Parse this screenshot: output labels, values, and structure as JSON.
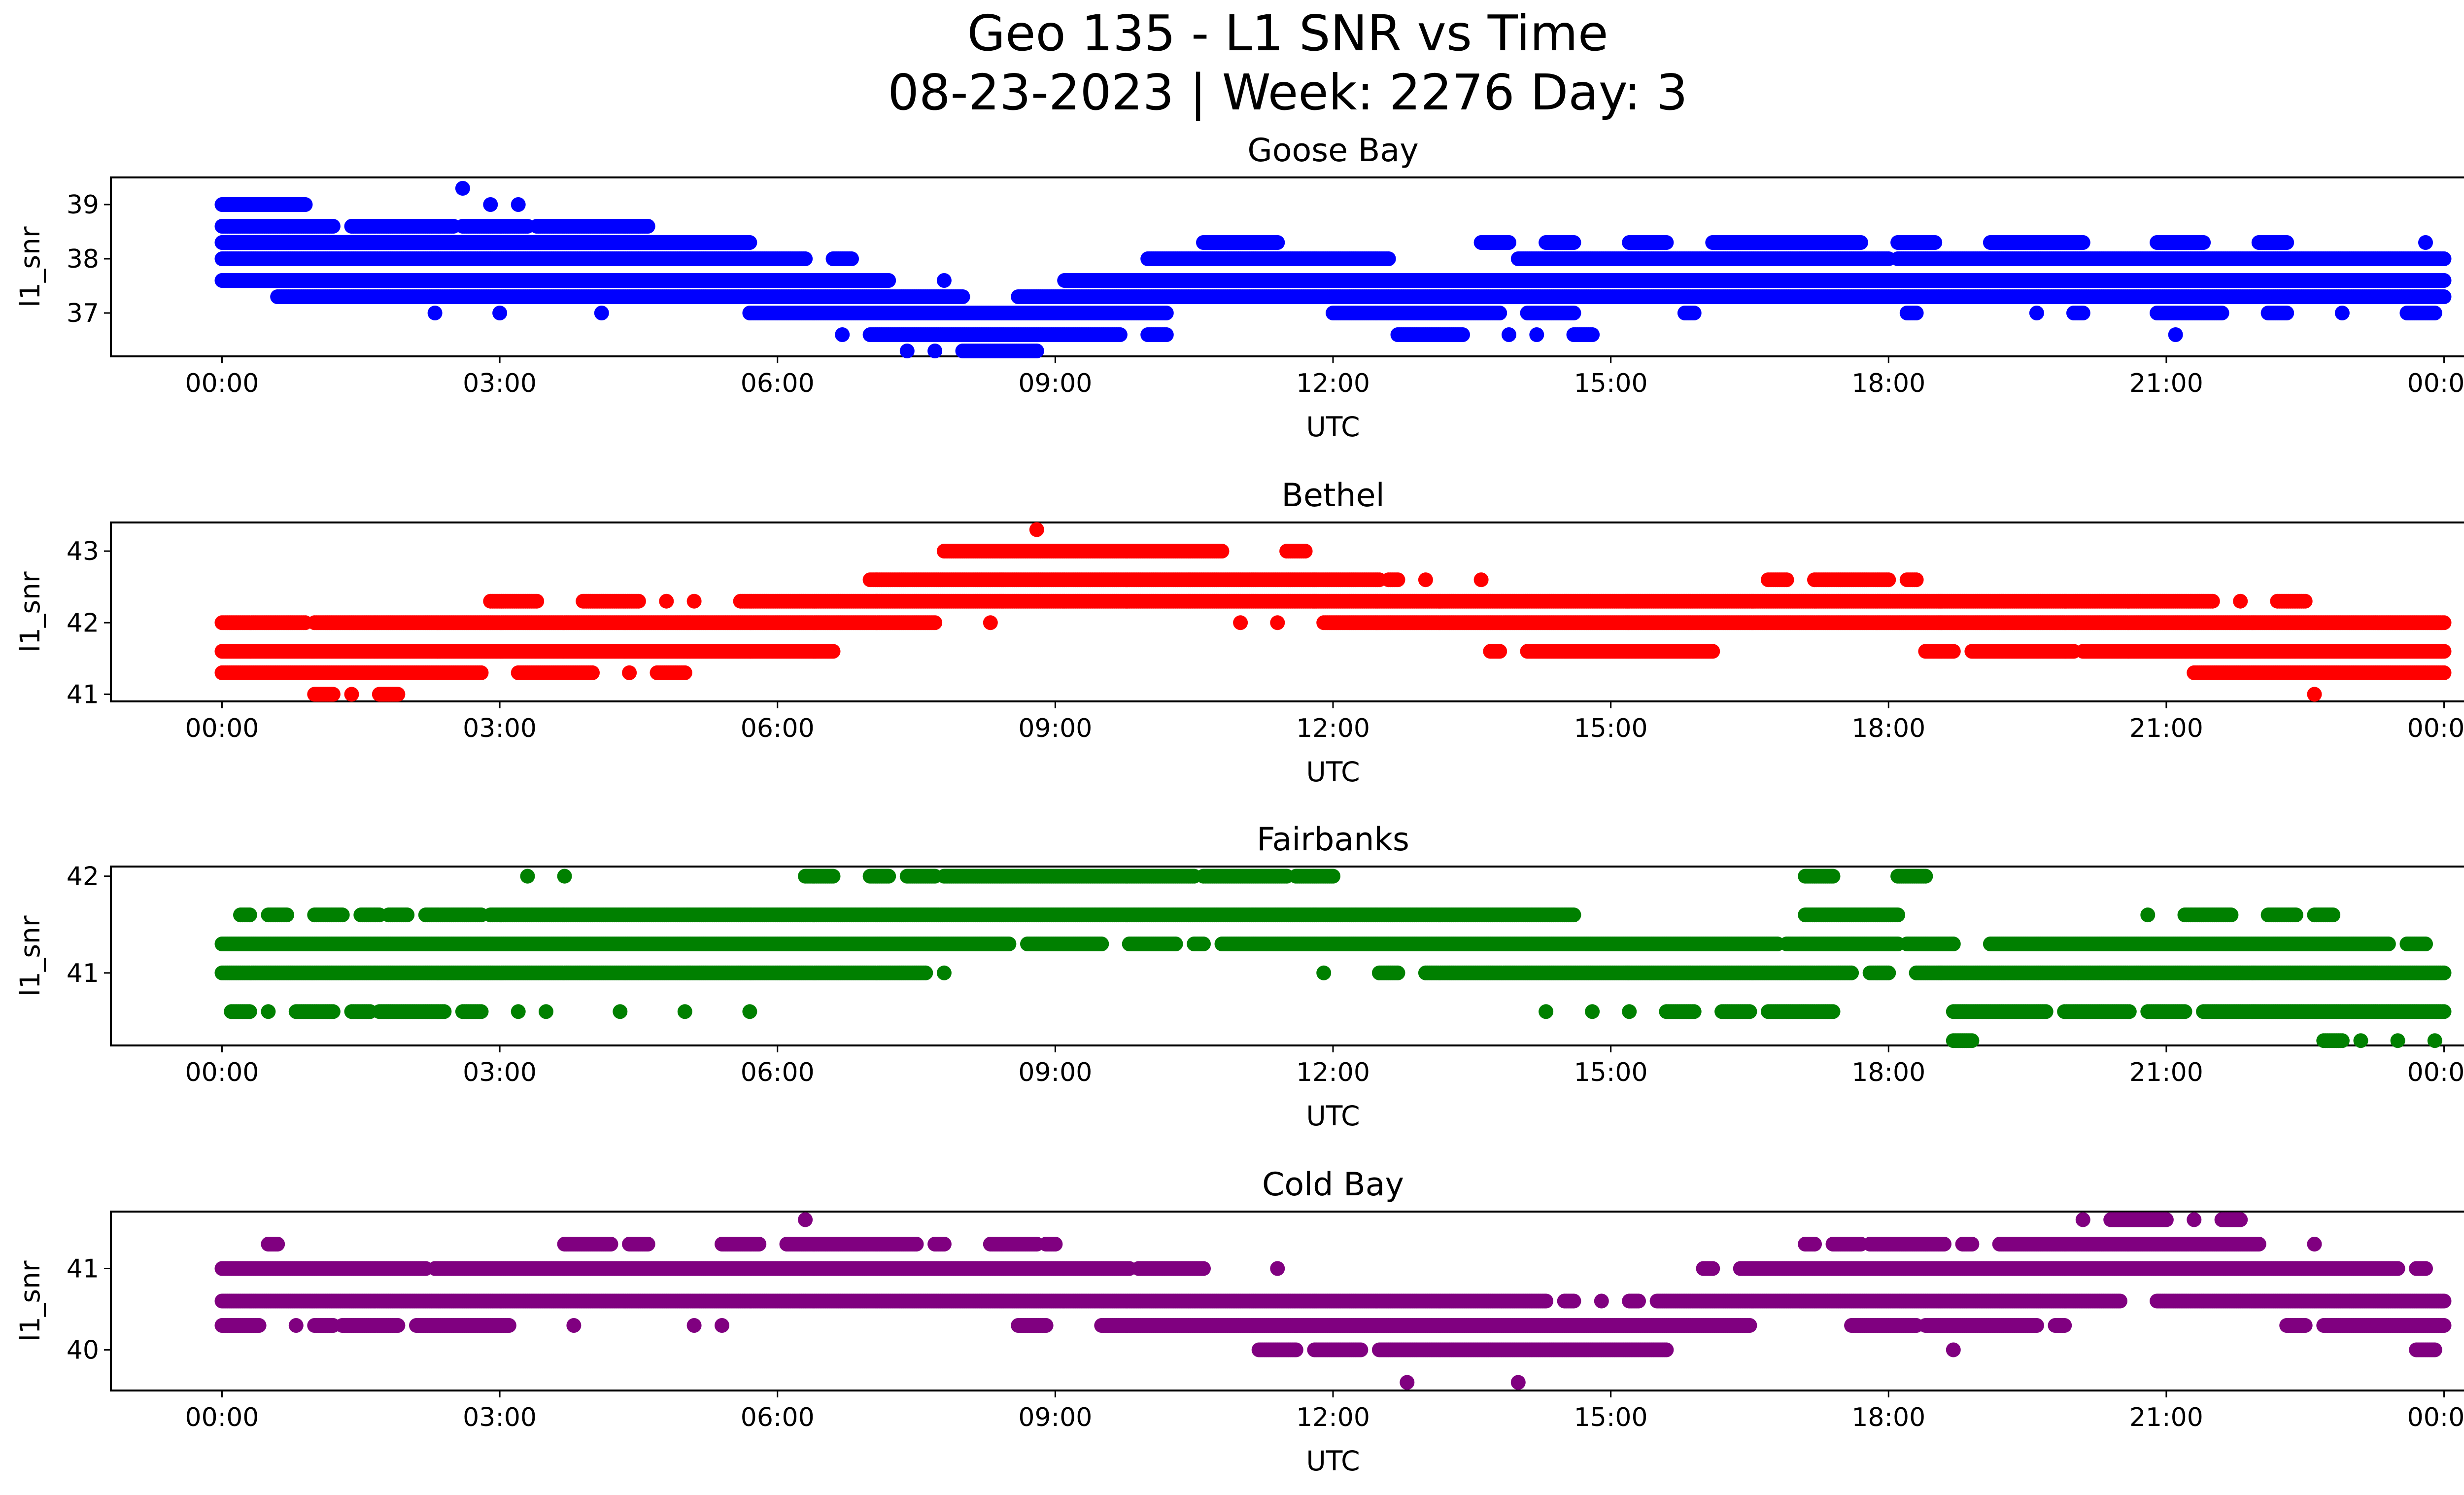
{
  "figure": {
    "title_line1": "Geo 135 - L1 SNR vs Time",
    "title_line2": "08-23-2023 | Week: 2276 Day: 3"
  },
  "chart_data": [
    {
      "type": "scatter",
      "title": "Goose Bay",
      "xlabel": "UTC",
      "ylabel": "l1_snr",
      "color": "#0000ff",
      "x_unit": "hours UTC",
      "xlim": [
        -1.2,
        25.2
      ],
      "ylim": [
        36.2,
        39.5
      ],
      "xticks": [
        "00:00",
        "03:00",
        "06:00",
        "09:00",
        "12:00",
        "15:00",
        "18:00",
        "21:00",
        "00:00"
      ],
      "yticks": [
        37,
        38,
        39
      ],
      "bands": [
        {
          "y": 39.0,
          "ranges": [
            [
              0.0,
              0.9
            ]
          ]
        },
        {
          "y": 38.6,
          "ranges": [
            [
              0.0,
              1.2
            ],
            [
              1.4,
              2.5
            ],
            [
              2.6,
              3.3
            ],
            [
              3.4,
              4.6
            ]
          ]
        },
        {
          "y": 38.3,
          "ranges": [
            [
              0.0,
              5.7
            ],
            [
              10.6,
              11.4
            ],
            [
              13.6,
              13.9
            ],
            [
              14.3,
              14.6
            ],
            [
              15.2,
              15.6
            ],
            [
              16.1,
              17.7
            ],
            [
              18.1,
              18.5
            ],
            [
              19.1,
              20.1
            ],
            [
              20.9,
              21.4
            ],
            [
              22.0,
              22.3
            ],
            [
              23.8,
              23.8
            ]
          ]
        },
        {
          "y": 38.0,
          "ranges": [
            [
              0.0,
              6.3
            ],
            [
              6.6,
              6.8
            ],
            [
              10.0,
              12.6
            ],
            [
              14.0,
              18.0
            ],
            [
              18.1,
              24.0
            ]
          ]
        },
        {
          "y": 37.6,
          "ranges": [
            [
              0.0,
              7.2
            ],
            [
              9.1,
              24.0
            ]
          ]
        },
        {
          "y": 37.3,
          "ranges": [
            [
              0.6,
              8.0
            ],
            [
              8.6,
              24.0
            ]
          ]
        },
        {
          "y": 37.0,
          "ranges": [
            [
              2.3,
              2.3
            ],
            [
              3.0,
              3.0
            ],
            [
              4.1,
              4.1
            ],
            [
              5.7,
              10.2
            ],
            [
              12.0,
              13.8
            ],
            [
              14.1,
              14.6
            ],
            [
              15.8,
              15.9
            ],
            [
              18.2,
              18.3
            ],
            [
              19.6,
              19.6
            ],
            [
              20.0,
              20.1
            ],
            [
              20.9,
              21.6
            ],
            [
              22.1,
              22.3
            ],
            [
              22.9,
              22.9
            ],
            [
              23.6,
              23.9
            ]
          ]
        },
        {
          "y": 36.6,
          "ranges": [
            [
              6.7,
              6.7
            ],
            [
              7.0,
              9.7
            ],
            [
              10.0,
              10.2
            ],
            [
              12.7,
              13.4
            ],
            [
              13.9,
              13.9
            ],
            [
              14.2,
              14.2
            ],
            [
              14.6,
              14.8
            ],
            [
              21.1,
              21.1
            ]
          ]
        },
        {
          "y": 36.3,
          "ranges": [
            [
              7.4,
              7.4
            ],
            [
              7.7,
              7.7
            ],
            [
              8.0,
              8.8
            ]
          ]
        }
      ],
      "points": [
        {
          "x": 2.6,
          "y": 39.3
        },
        {
          "x": 2.9,
          "y": 39.0
        },
        {
          "x": 3.2,
          "y": 39.0
        },
        {
          "x": 7.8,
          "y": 37.6
        }
      ]
    },
    {
      "type": "scatter",
      "title": "Bethel",
      "xlabel": "UTC",
      "ylabel": "l1_snr",
      "color": "#ff0000",
      "x_unit": "hours UTC",
      "xlim": [
        -1.2,
        25.2
      ],
      "ylim": [
        40.9,
        43.4
      ],
      "xticks": [
        "00:00",
        "03:00",
        "06:00",
        "09:00",
        "12:00",
        "15:00",
        "18:00",
        "21:00",
        "00:00"
      ],
      "yticks": [
        41,
        42,
        43
      ],
      "bands": [
        {
          "y": 43.0,
          "ranges": [
            [
              7.8,
              10.8
            ],
            [
              11.5,
              11.7
            ]
          ]
        },
        {
          "y": 42.6,
          "ranges": [
            [
              7.0,
              12.5
            ],
            [
              12.6,
              12.7
            ],
            [
              13.0,
              13.0
            ],
            [
              13.6,
              13.6
            ],
            [
              16.7,
              16.9
            ],
            [
              17.2,
              18.0
            ],
            [
              18.2,
              18.3
            ]
          ]
        },
        {
          "y": 42.3,
          "ranges": [
            [
              2.9,
              3.4
            ],
            [
              3.9,
              4.5
            ],
            [
              4.8,
              4.8
            ],
            [
              5.1,
              5.1
            ],
            [
              5.6,
              21.5
            ],
            [
              21.8,
              21.8
            ],
            [
              22.2,
              22.5
            ]
          ]
        },
        {
          "y": 42.0,
          "ranges": [
            [
              0.0,
              0.9
            ],
            [
              1.0,
              7.7
            ],
            [
              11.0,
              11.0
            ],
            [
              11.9,
              24.0
            ]
          ]
        },
        {
          "y": 41.6,
          "ranges": [
            [
              0.0,
              6.6
            ],
            [
              13.7,
              13.8
            ],
            [
              14.1,
              16.1
            ],
            [
              18.4,
              18.7
            ],
            [
              18.9,
              20.0
            ],
            [
              20.1,
              24.0
            ]
          ]
        },
        {
          "y": 41.3,
          "ranges": [
            [
              0.0,
              2.8
            ],
            [
              3.2,
              4.0
            ],
            [
              4.4,
              4.4
            ],
            [
              4.7,
              5.0
            ],
            [
              21.3,
              24.0
            ]
          ]
        },
        {
          "y": 41.0,
          "ranges": [
            [
              1.0,
              1.2
            ],
            [
              1.4,
              1.4
            ],
            [
              1.7,
              1.9
            ],
            [
              22.6,
              22.6
            ]
          ]
        }
      ],
      "points": [
        {
          "x": 8.8,
          "y": 43.3
        },
        {
          "x": 8.3,
          "y": 42.0
        },
        {
          "x": 11.4,
          "y": 42.0
        }
      ]
    },
    {
      "type": "scatter",
      "title": "Fairbanks",
      "xlabel": "UTC",
      "ylabel": "l1_snr",
      "color": "#008000",
      "x_unit": "hours UTC",
      "xlim": [
        -1.2,
        25.2
      ],
      "ylim": [
        40.25,
        42.1
      ],
      "xticks": [
        "00:00",
        "03:00",
        "06:00",
        "09:00",
        "12:00",
        "15:00",
        "18:00",
        "21:00",
        "00:00"
      ],
      "yticks": [
        41,
        42
      ],
      "bands": [
        {
          "y": 42.0,
          "ranges": [
            [
              3.3,
              3.3
            ],
            [
              3.7,
              3.7
            ],
            [
              6.3,
              6.6
            ],
            [
              7.0,
              7.2
            ],
            [
              7.4,
              7.7
            ],
            [
              7.8,
              10.5
            ],
            [
              10.6,
              11.5
            ],
            [
              11.6,
              12.0
            ],
            [
              17.1,
              17.4
            ],
            [
              18.1,
              18.4
            ]
          ]
        },
        {
          "y": 41.6,
          "ranges": [
            [
              0.2,
              0.3
            ],
            [
              0.5,
              0.7
            ],
            [
              1.0,
              1.3
            ],
            [
              1.5,
              1.7
            ],
            [
              1.8,
              2.0
            ],
            [
              2.2,
              2.8
            ],
            [
              2.9,
              14.6
            ],
            [
              17.1,
              18.1
            ],
            [
              20.8,
              20.8
            ],
            [
              21.2,
              21.7
            ],
            [
              22.1,
              22.4
            ],
            [
              22.6,
              22.8
            ]
          ]
        },
        {
          "y": 41.3,
          "ranges": [
            [
              0.0,
              8.5
            ],
            [
              8.7,
              9.5
            ],
            [
              9.8,
              10.3
            ],
            [
              10.5,
              10.6
            ],
            [
              10.8,
              16.8
            ],
            [
              16.9,
              18.1
            ],
            [
              18.2,
              18.7
            ],
            [
              19.1,
              23.4
            ],
            [
              23.6,
              23.8
            ]
          ]
        },
        {
          "y": 41.0,
          "ranges": [
            [
              0.0,
              7.6
            ],
            [
              7.8,
              7.8
            ],
            [
              11.9,
              11.9
            ],
            [
              12.5,
              12.7
            ],
            [
              13.0,
              17.6
            ],
            [
              17.8,
              18.0
            ],
            [
              18.3,
              24.0
            ]
          ]
        },
        {
          "y": 40.6,
          "ranges": [
            [
              0.1,
              0.3
            ],
            [
              0.5,
              0.5
            ],
            [
              0.8,
              1.2
            ],
            [
              1.4,
              1.6
            ],
            [
              1.7,
              2.4
            ],
            [
              2.6,
              2.8
            ],
            [
              3.2,
              3.2
            ],
            [
              3.5,
              3.5
            ],
            [
              4.3,
              4.3
            ],
            [
              5.0,
              5.0
            ],
            [
              5.7,
              5.7
            ],
            [
              14.3,
              14.3
            ],
            [
              14.8,
              14.8
            ],
            [
              15.2,
              15.2
            ],
            [
              15.6,
              15.9
            ],
            [
              16.2,
              16.5
            ],
            [
              16.7,
              17.4
            ],
            [
              18.7,
              19.7
            ],
            [
              19.9,
              20.6
            ],
            [
              20.8,
              21.2
            ],
            [
              21.4,
              24.0
            ]
          ]
        },
        {
          "y": 40.3,
          "ranges": [
            [
              18.7,
              18.9
            ],
            [
              22.7,
              22.9
            ],
            [
              23.1,
              23.1
            ],
            [
              23.5,
              23.5
            ],
            [
              23.9,
              23.9
            ]
          ]
        }
      ],
      "points": []
    },
    {
      "type": "scatter",
      "title": "Cold Bay",
      "xlabel": "UTC",
      "ylabel": "l1_snr",
      "color": "#800080",
      "x_unit": "hours UTC",
      "xlim": [
        -1.2,
        25.2
      ],
      "ylim": [
        39.5,
        41.7
      ],
      "xticks": [
        "00:00",
        "03:00",
        "06:00",
        "09:00",
        "12:00",
        "15:00",
        "18:00",
        "21:00",
        "00:00"
      ],
      "yticks": [
        40,
        41
      ],
      "bands": [
        {
          "y": 41.6,
          "ranges": [
            [
              6.3,
              6.3
            ],
            [
              20.1,
              20.1
            ],
            [
              20.4,
              21.0
            ],
            [
              21.3,
              21.3
            ],
            [
              21.6,
              21.8
            ]
          ]
        },
        {
          "y": 41.3,
          "ranges": [
            [
              0.5,
              0.6
            ],
            [
              3.7,
              4.2
            ],
            [
              4.4,
              4.6
            ],
            [
              5.4,
              5.8
            ],
            [
              6.1,
              7.5
            ],
            [
              7.7,
              7.8
            ],
            [
              8.3,
              8.8
            ],
            [
              8.9,
              9.0
            ],
            [
              17.1,
              17.2
            ],
            [
              17.4,
              17.7
            ],
            [
              17.8,
              18.6
            ],
            [
              18.8,
              18.9
            ],
            [
              19.2,
              22.0
            ],
            [
              22.6,
              22.6
            ]
          ]
        },
        {
          "y": 41.0,
          "ranges": [
            [
              0.0,
              2.2
            ],
            [
              2.3,
              9.8
            ],
            [
              9.9,
              10.6
            ],
            [
              11.4,
              11.4
            ],
            [
              16.0,
              16.1
            ],
            [
              16.4,
              23.5
            ],
            [
              23.7,
              23.8
            ]
          ]
        },
        {
          "y": 40.6,
          "ranges": [
            [
              0.0,
              14.3
            ],
            [
              14.5,
              14.6
            ],
            [
              14.9,
              14.9
            ],
            [
              15.2,
              15.3
            ],
            [
              15.5,
              20.5
            ],
            [
              20.9,
              24.0
            ]
          ]
        },
        {
          "y": 40.3,
          "ranges": [
            [
              0.0,
              0.4
            ],
            [
              0.8,
              0.8
            ],
            [
              1.0,
              1.2
            ],
            [
              1.3,
              1.9
            ],
            [
              2.1,
              3.1
            ],
            [
              3.8,
              3.8
            ],
            [
              5.1,
              5.1
            ],
            [
              5.4,
              5.4
            ],
            [
              8.6,
              8.9
            ],
            [
              9.5,
              16.5
            ],
            [
              17.6,
              18.3
            ],
            [
              18.4,
              19.6
            ],
            [
              19.8,
              19.9
            ],
            [
              22.3,
              22.5
            ],
            [
              22.7,
              24.0
            ]
          ]
        },
        {
          "y": 40.0,
          "ranges": [
            [
              11.2,
              11.6
            ],
            [
              11.8,
              12.3
            ],
            [
              12.5,
              15.6
            ],
            [
              18.7,
              18.7
            ],
            [
              23.7,
              23.9
            ]
          ]
        },
        {
          "y": 39.6,
          "ranges": [
            [
              12.8,
              12.8
            ],
            [
              14.0,
              14.0
            ]
          ]
        }
      ],
      "points": [
        {
          "x": 11.6,
          "y": 40.3
        }
      ]
    }
  ]
}
